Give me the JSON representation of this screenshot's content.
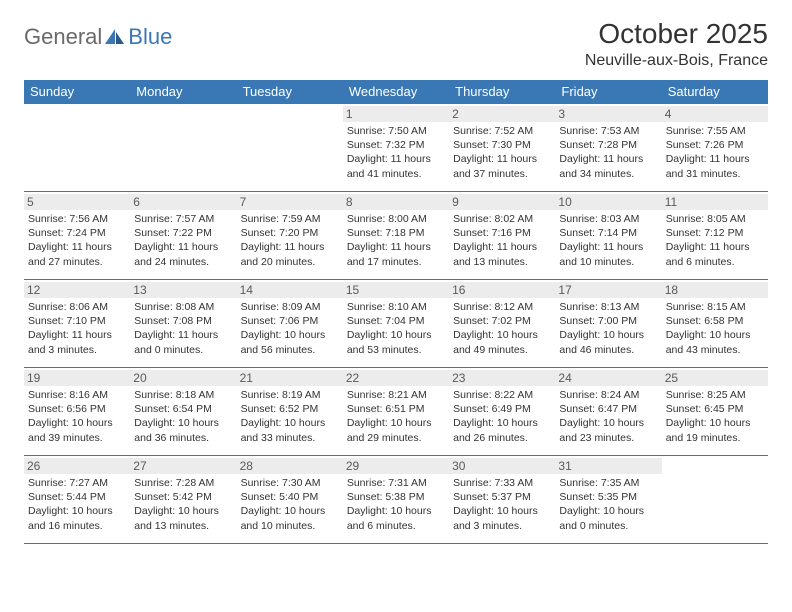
{
  "logo": {
    "part1": "General",
    "part2": "Blue"
  },
  "title": "October 2025",
  "location": "Neuville-aux-Bois, France",
  "colors": {
    "header_bg": "#3a78b5",
    "header_text": "#ffffff",
    "border": "#3a78b5",
    "daynum_bg": "#ececec",
    "daynum_text": "#5a5a5a",
    "body_text": "#333333",
    "logo_gray": "#6a6a6a",
    "logo_blue": "#3a78b5",
    "page_bg": "#ffffff"
  },
  "typography": {
    "title_fontsize": 28,
    "location_fontsize": 16,
    "header_fontsize": 13,
    "daynum_fontsize": 12,
    "cell_fontsize": 10.5
  },
  "day_headers": [
    "Sunday",
    "Monday",
    "Tuesday",
    "Wednesday",
    "Thursday",
    "Friday",
    "Saturday"
  ],
  "weeks": [
    [
      {
        "num": "",
        "sunrise": "",
        "sunset": "",
        "daylight": ""
      },
      {
        "num": "",
        "sunrise": "",
        "sunset": "",
        "daylight": ""
      },
      {
        "num": "",
        "sunrise": "",
        "sunset": "",
        "daylight": ""
      },
      {
        "num": "1",
        "sunrise": "Sunrise: 7:50 AM",
        "sunset": "Sunset: 7:32 PM",
        "daylight": "Daylight: 11 hours and 41 minutes."
      },
      {
        "num": "2",
        "sunrise": "Sunrise: 7:52 AM",
        "sunset": "Sunset: 7:30 PM",
        "daylight": "Daylight: 11 hours and 37 minutes."
      },
      {
        "num": "3",
        "sunrise": "Sunrise: 7:53 AM",
        "sunset": "Sunset: 7:28 PM",
        "daylight": "Daylight: 11 hours and 34 minutes."
      },
      {
        "num": "4",
        "sunrise": "Sunrise: 7:55 AM",
        "sunset": "Sunset: 7:26 PM",
        "daylight": "Daylight: 11 hours and 31 minutes."
      }
    ],
    [
      {
        "num": "5",
        "sunrise": "Sunrise: 7:56 AM",
        "sunset": "Sunset: 7:24 PM",
        "daylight": "Daylight: 11 hours and 27 minutes."
      },
      {
        "num": "6",
        "sunrise": "Sunrise: 7:57 AM",
        "sunset": "Sunset: 7:22 PM",
        "daylight": "Daylight: 11 hours and 24 minutes."
      },
      {
        "num": "7",
        "sunrise": "Sunrise: 7:59 AM",
        "sunset": "Sunset: 7:20 PM",
        "daylight": "Daylight: 11 hours and 20 minutes."
      },
      {
        "num": "8",
        "sunrise": "Sunrise: 8:00 AM",
        "sunset": "Sunset: 7:18 PM",
        "daylight": "Daylight: 11 hours and 17 minutes."
      },
      {
        "num": "9",
        "sunrise": "Sunrise: 8:02 AM",
        "sunset": "Sunset: 7:16 PM",
        "daylight": "Daylight: 11 hours and 13 minutes."
      },
      {
        "num": "10",
        "sunrise": "Sunrise: 8:03 AM",
        "sunset": "Sunset: 7:14 PM",
        "daylight": "Daylight: 11 hours and 10 minutes."
      },
      {
        "num": "11",
        "sunrise": "Sunrise: 8:05 AM",
        "sunset": "Sunset: 7:12 PM",
        "daylight": "Daylight: 11 hours and 6 minutes."
      }
    ],
    [
      {
        "num": "12",
        "sunrise": "Sunrise: 8:06 AM",
        "sunset": "Sunset: 7:10 PM",
        "daylight": "Daylight: 11 hours and 3 minutes."
      },
      {
        "num": "13",
        "sunrise": "Sunrise: 8:08 AM",
        "sunset": "Sunset: 7:08 PM",
        "daylight": "Daylight: 11 hours and 0 minutes."
      },
      {
        "num": "14",
        "sunrise": "Sunrise: 8:09 AM",
        "sunset": "Sunset: 7:06 PM",
        "daylight": "Daylight: 10 hours and 56 minutes."
      },
      {
        "num": "15",
        "sunrise": "Sunrise: 8:10 AM",
        "sunset": "Sunset: 7:04 PM",
        "daylight": "Daylight: 10 hours and 53 minutes."
      },
      {
        "num": "16",
        "sunrise": "Sunrise: 8:12 AM",
        "sunset": "Sunset: 7:02 PM",
        "daylight": "Daylight: 10 hours and 49 minutes."
      },
      {
        "num": "17",
        "sunrise": "Sunrise: 8:13 AM",
        "sunset": "Sunset: 7:00 PM",
        "daylight": "Daylight: 10 hours and 46 minutes."
      },
      {
        "num": "18",
        "sunrise": "Sunrise: 8:15 AM",
        "sunset": "Sunset: 6:58 PM",
        "daylight": "Daylight: 10 hours and 43 minutes."
      }
    ],
    [
      {
        "num": "19",
        "sunrise": "Sunrise: 8:16 AM",
        "sunset": "Sunset: 6:56 PM",
        "daylight": "Daylight: 10 hours and 39 minutes."
      },
      {
        "num": "20",
        "sunrise": "Sunrise: 8:18 AM",
        "sunset": "Sunset: 6:54 PM",
        "daylight": "Daylight: 10 hours and 36 minutes."
      },
      {
        "num": "21",
        "sunrise": "Sunrise: 8:19 AM",
        "sunset": "Sunset: 6:52 PM",
        "daylight": "Daylight: 10 hours and 33 minutes."
      },
      {
        "num": "22",
        "sunrise": "Sunrise: 8:21 AM",
        "sunset": "Sunset: 6:51 PM",
        "daylight": "Daylight: 10 hours and 29 minutes."
      },
      {
        "num": "23",
        "sunrise": "Sunrise: 8:22 AM",
        "sunset": "Sunset: 6:49 PM",
        "daylight": "Daylight: 10 hours and 26 minutes."
      },
      {
        "num": "24",
        "sunrise": "Sunrise: 8:24 AM",
        "sunset": "Sunset: 6:47 PM",
        "daylight": "Daylight: 10 hours and 23 minutes."
      },
      {
        "num": "25",
        "sunrise": "Sunrise: 8:25 AM",
        "sunset": "Sunset: 6:45 PM",
        "daylight": "Daylight: 10 hours and 19 minutes."
      }
    ],
    [
      {
        "num": "26",
        "sunrise": "Sunrise: 7:27 AM",
        "sunset": "Sunset: 5:44 PM",
        "daylight": "Daylight: 10 hours and 16 minutes."
      },
      {
        "num": "27",
        "sunrise": "Sunrise: 7:28 AM",
        "sunset": "Sunset: 5:42 PM",
        "daylight": "Daylight: 10 hours and 13 minutes."
      },
      {
        "num": "28",
        "sunrise": "Sunrise: 7:30 AM",
        "sunset": "Sunset: 5:40 PM",
        "daylight": "Daylight: 10 hours and 10 minutes."
      },
      {
        "num": "29",
        "sunrise": "Sunrise: 7:31 AM",
        "sunset": "Sunset: 5:38 PM",
        "daylight": "Daylight: 10 hours and 6 minutes."
      },
      {
        "num": "30",
        "sunrise": "Sunrise: 7:33 AM",
        "sunset": "Sunset: 5:37 PM",
        "daylight": "Daylight: 10 hours and 3 minutes."
      },
      {
        "num": "31",
        "sunrise": "Sunrise: 7:35 AM",
        "sunset": "Sunset: 5:35 PM",
        "daylight": "Daylight: 10 hours and 0 minutes."
      },
      {
        "num": "",
        "sunrise": "",
        "sunset": "",
        "daylight": ""
      }
    ]
  ]
}
